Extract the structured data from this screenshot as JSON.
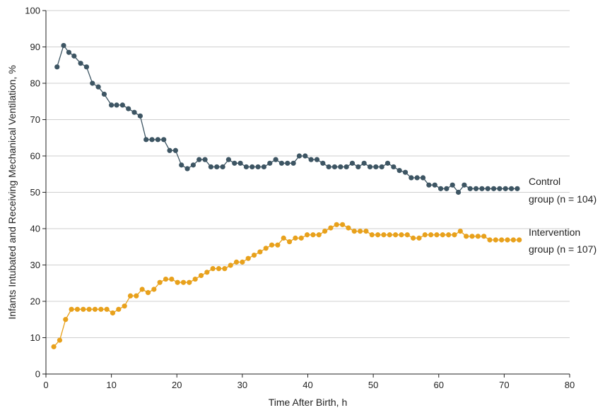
{
  "chart_data": {
    "type": "line",
    "title": "",
    "xlabel": "Time After Birth, h",
    "ylabel": "Infants Intubated and Receiving Mechanical Ventilation, %",
    "xlim": [
      0,
      80
    ],
    "ylim": [
      0,
      100
    ],
    "xticks": [
      "0",
      "10",
      "20",
      "30",
      "40",
      "50",
      "60",
      "70",
      "80"
    ],
    "yticks": [
      "0",
      "10",
      "20",
      "30",
      "40",
      "50",
      "60",
      "70",
      "80",
      "90",
      "100"
    ],
    "grid": "horizontal",
    "series": [
      {
        "name_line1": "Control",
        "name_line2": "group (n = 104)",
        "color": "#3d5563",
        "x": [
          1.7,
          2.7,
          3.5,
          4.3,
          5.3,
          6.2,
          7.1,
          8.0,
          8.9,
          10.0,
          10.8,
          11.7,
          12.6,
          13.5,
          14.4,
          15.3,
          16.2,
          17.1,
          18.0,
          18.9,
          19.8,
          20.7,
          21.6,
          22.5,
          23.4,
          24.3,
          25.2,
          26.1,
          27.0,
          27.9,
          28.8,
          29.7,
          30.6,
          31.5,
          32.4,
          33.3,
          34.2,
          35.1,
          36.0,
          36.9,
          37.8,
          38.7,
          39.6,
          40.5,
          41.4,
          42.3,
          43.2,
          44.1,
          45.0,
          45.9,
          46.8,
          47.7,
          48.6,
          49.5,
          50.4,
          51.3,
          52.2,
          53.1,
          54.0,
          54.9,
          55.8,
          56.7,
          57.6,
          58.5,
          59.4,
          60.3,
          61.2,
          62.1,
          63.0,
          63.9,
          64.8,
          65.7,
          66.6,
          67.5,
          68.4,
          69.3,
          70.2,
          71.1,
          72.0
        ],
        "y": [
          84.5,
          90.4,
          88.5,
          87.5,
          85.5,
          84.5,
          80.0,
          79.0,
          77.0,
          74.0,
          74.0,
          74.0,
          73.0,
          72.0,
          71.0,
          64.5,
          64.5,
          64.5,
          64.5,
          61.5,
          61.5,
          57.5,
          56.5,
          57.5,
          59.0,
          59.0,
          57.0,
          57.0,
          57.0,
          59.0,
          58.0,
          58.0,
          57.0,
          57.0,
          57.0,
          57.0,
          58.0,
          59.0,
          58.0,
          58.0,
          58.0,
          60.0,
          60.0,
          59.0,
          59.0,
          58.0,
          57.0,
          57.0,
          57.0,
          57.0,
          58.0,
          57.0,
          58.0,
          57.0,
          57.0,
          57.0,
          58.0,
          57.0,
          56.0,
          55.5,
          54.0,
          54.0,
          54.0,
          52.0,
          52.0,
          51.0,
          51.0,
          52.0,
          50.0,
          52.0,
          51.0,
          51.0,
          51.0,
          51.0,
          51.0,
          51.0,
          51.0,
          51.0,
          51.0
        ]
      },
      {
        "name_line1": "Intervention",
        "name_line2": "group (n = 107)",
        "color": "#e8a11c",
        "x": [
          1.2,
          2.1,
          3.0,
          3.9,
          4.8,
          5.7,
          6.6,
          7.5,
          8.4,
          9.3,
          10.2,
          11.1,
          12.0,
          12.9,
          13.8,
          14.7,
          15.6,
          16.5,
          17.4,
          18.3,
          19.2,
          20.1,
          21.0,
          21.9,
          22.8,
          23.7,
          24.6,
          25.5,
          26.4,
          27.3,
          28.2,
          29.1,
          30.0,
          30.9,
          31.8,
          32.7,
          33.6,
          34.5,
          35.4,
          36.3,
          37.2,
          38.1,
          39.0,
          39.9,
          40.8,
          41.7,
          42.6,
          43.5,
          44.4,
          45.3,
          46.2,
          47.1,
          48.0,
          48.9,
          49.8,
          50.7,
          51.6,
          52.5,
          53.4,
          54.3,
          55.2,
          56.1,
          57.0,
          57.9,
          58.8,
          59.7,
          60.6,
          61.5,
          62.4,
          63.3,
          64.2,
          65.1,
          66.0,
          66.9,
          67.8,
          68.7,
          69.6,
          70.5,
          71.4,
          72.3
        ],
        "y": [
          7.5,
          9.3,
          15.0,
          17.8,
          17.8,
          17.8,
          17.8,
          17.8,
          17.8,
          17.8,
          16.8,
          17.8,
          18.7,
          21.5,
          21.5,
          23.3,
          22.4,
          23.3,
          25.2,
          26.1,
          26.1,
          25.2,
          25.2,
          25.2,
          26.1,
          27.1,
          28.0,
          29.0,
          29.0,
          29.0,
          29.9,
          30.8,
          30.8,
          31.8,
          32.7,
          33.6,
          34.6,
          35.5,
          35.5,
          37.4,
          36.4,
          37.4,
          37.4,
          38.3,
          38.3,
          38.3,
          39.3,
          40.2,
          41.1,
          41.1,
          40.2,
          39.3,
          39.3,
          39.3,
          38.3,
          38.3,
          38.3,
          38.3,
          38.3,
          38.3,
          38.3,
          37.4,
          37.4,
          38.3,
          38.3,
          38.3,
          38.3,
          38.3,
          38.3,
          39.3,
          37.9,
          37.9,
          37.9,
          37.9,
          36.9,
          36.9,
          36.9,
          36.9,
          36.9,
          36.9
        ]
      }
    ]
  }
}
